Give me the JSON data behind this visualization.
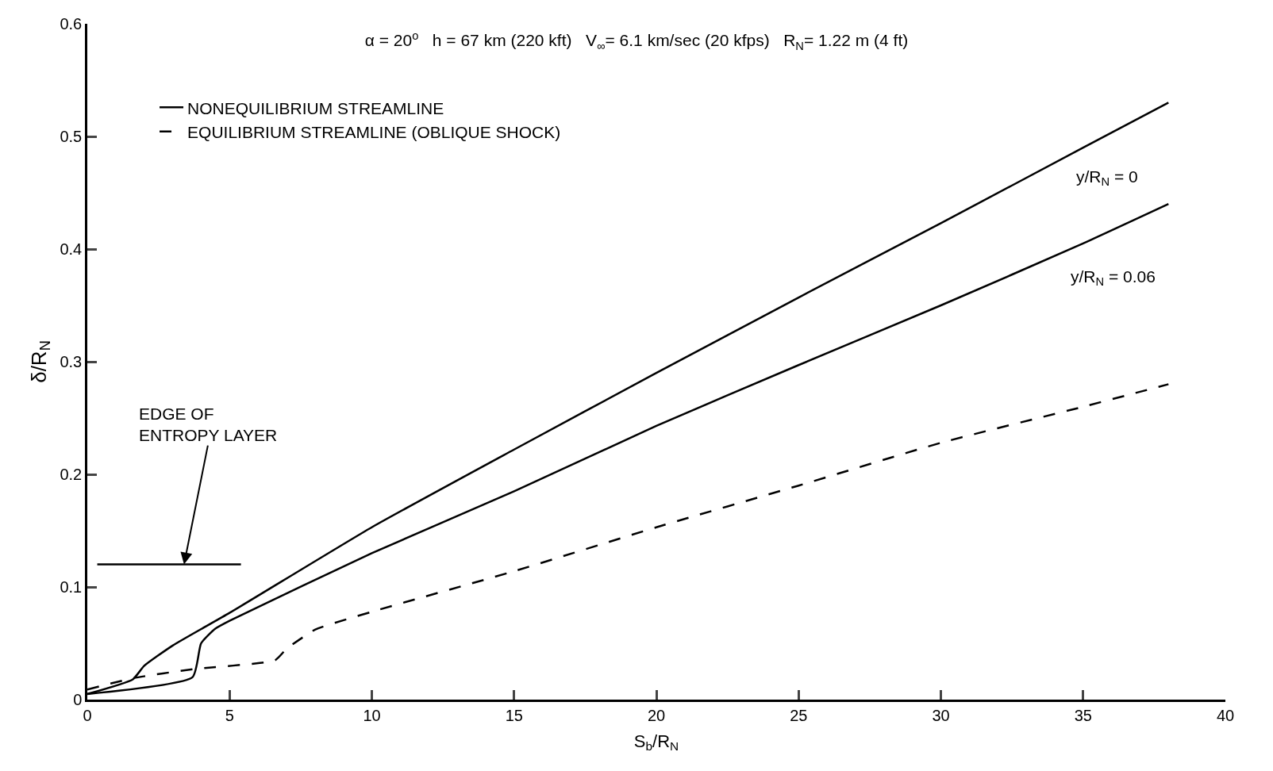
{
  "chart_data": {
    "type": "line",
    "title": "α = 20$^{o}$   h = 67 km (220 kft)   V$_{∞}$= 6.1 km/sec (20 kfps)   R$_{N}$= 1.22 m (4 ft)",
    "xlabel": "S$_{b}$/R$_{N}$",
    "ylabel": "δ/R$_{N}$",
    "xlim": [
      0,
      40
    ],
    "xticks": [
      0,
      5,
      10,
      15,
      20,
      25,
      30,
      35,
      40
    ],
    "ylim": [
      0,
      0.6
    ],
    "yticks": [
      0,
      0.1,
      0.2,
      0.3,
      0.4,
      0.5,
      0.6
    ],
    "legend": "top left",
    "marker": "none",
    "series": [
      {
        "name": "NONEQUILIBRIUM STREAMLINE",
        "color": "#000000",
        "line_style": "solid",
        "x": [
          0,
          1.6,
          2,
          3,
          5,
          10,
          15,
          20,
          25,
          30,
          35,
          38
        ],
        "values": [
          0.005,
          0.018,
          0.03,
          0.048,
          0.077,
          0.153,
          0.222,
          0.29,
          0.357,
          0.423,
          0.49,
          0.53
        ]
      },
      {
        "color": "#000000",
        "line_style": "solid",
        "x": [
          0,
          3.7,
          4,
          4.5,
          5,
          10,
          15,
          20,
          25,
          30,
          35,
          38
        ],
        "values": [
          0.005,
          0.02,
          0.05,
          0.063,
          0.07,
          0.13,
          0.185,
          0.243,
          0.297,
          0.35,
          0.405,
          0.44
        ]
      },
      {
        "name": "EQUILIBRIUM STREAMLINE (OBLIQUE SHOCK)",
        "color": "#000000",
        "line_style": "dashed",
        "x": [
          0,
          1.6,
          3.7,
          6.6,
          7,
          8,
          10,
          15,
          20,
          25,
          30,
          35,
          38
        ],
        "values": [
          0.009,
          0.019,
          0.027,
          0.035,
          0.045,
          0.062,
          0.078,
          0.114,
          0.153,
          0.19,
          0.228,
          0.26,
          0.28
        ]
      },
      {
        "color": "#000000",
        "line_style": "solid",
        "x": [
          0.35,
          5.4
        ],
        "values": [
          0.12,
          0.12
        ]
      }
    ],
    "annotations": [
      "y/R$_{N}$ = 0",
      "y/R$_{N}$ = 0.06",
      {
        "text": "EDGE OF ENTROPY LAYER",
        "x": 3.4,
        "y": 0.12
      }
    ]
  }
}
